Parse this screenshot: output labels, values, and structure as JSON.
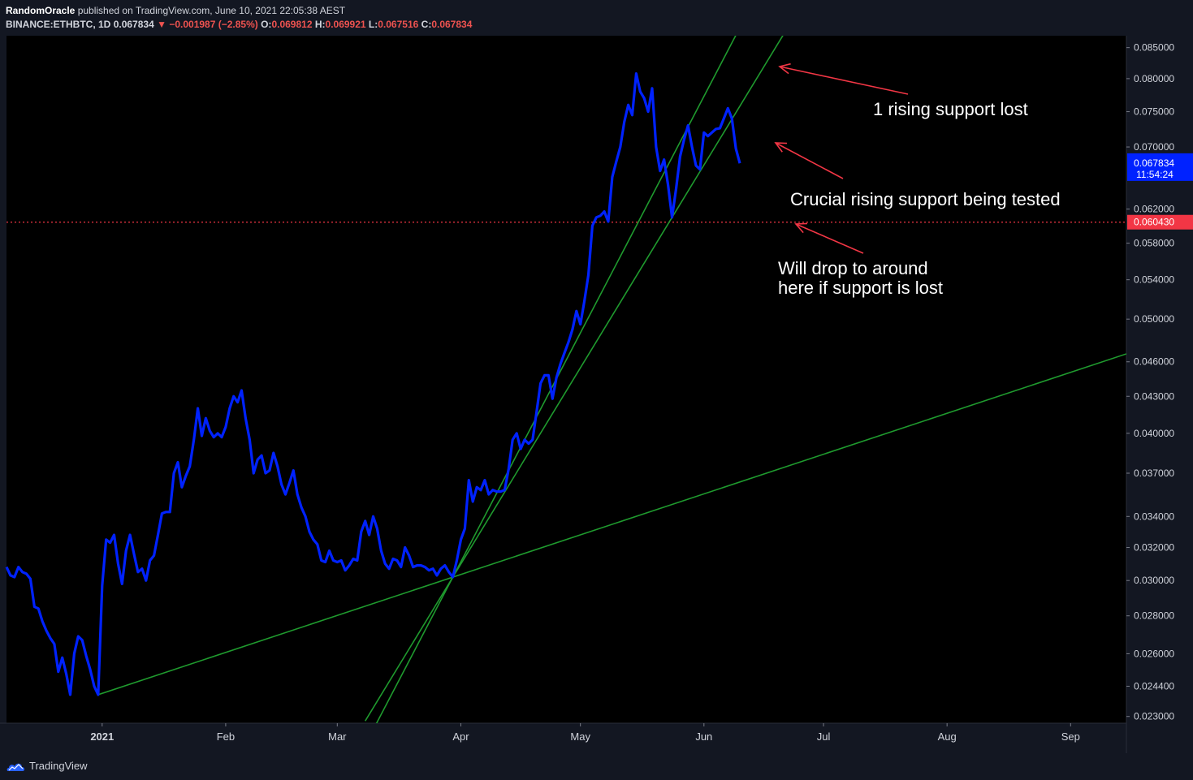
{
  "header": {
    "author": "RandomOracle",
    "published_text": "published on TradingView.com, June 10, 2021 22:05:38 AEST",
    "symbol": "BINANCE:ETHBTC, 1D",
    "last": "0.067834",
    "change": "−0.001987 (−2.85%)",
    "o_label": "O:",
    "o_value": "0.069812",
    "h_label": "H:",
    "h_value": "0.069921",
    "l_label": "L:",
    "l_value": "0.067516",
    "c_label": "C:",
    "c_value": "0.067834"
  },
  "footer": {
    "brand": "TradingView"
  },
  "annotations": {
    "a1": "1 rising support lost",
    "a2": "Crucial rising support being tested",
    "a3_line1": "Will drop to around",
    "a3_line2": "here if support is lost"
  },
  "colors": {
    "price_line": "#0022ff",
    "trend_line": "#1f9a2e",
    "arrow": "#f23645",
    "dotted_line": "#f23645",
    "background": "#131722"
  },
  "chart_data": {
    "type": "line",
    "y_scale": "log",
    "ylim": [
      0.0227,
      0.087
    ],
    "x_range": [
      "2020-12-08",
      "2021-09-15"
    ],
    "x_ticks": [
      {
        "date": "2021-01-01",
        "label": "2021",
        "bold": true
      },
      {
        "date": "2021-02-01",
        "label": "Feb"
      },
      {
        "date": "2021-03-01",
        "label": "Mar"
      },
      {
        "date": "2021-04-01",
        "label": "Apr"
      },
      {
        "date": "2021-05-01",
        "label": "May"
      },
      {
        "date": "2021-06-01",
        "label": "Jun"
      },
      {
        "date": "2021-07-01",
        "label": "Jul"
      },
      {
        "date": "2021-08-01",
        "label": "Aug"
      },
      {
        "date": "2021-09-01",
        "label": "Sep"
      }
    ],
    "y_ticks": [
      "0.085000",
      "0.080000",
      "0.075000",
      "0.070000",
      "0.062000",
      "0.058000",
      "0.054000",
      "0.050000",
      "0.046000",
      "0.043000",
      "0.040000",
      "0.037000",
      "0.034000",
      "0.032000",
      "0.030000",
      "0.028000",
      "0.026000",
      "0.024400",
      "0.023000"
    ],
    "y_tick_values": [
      0.085,
      0.08,
      0.075,
      0.07,
      0.062,
      0.058,
      0.054,
      0.05,
      0.046,
      0.043,
      0.04,
      0.037,
      0.034,
      0.032,
      0.03,
      0.028,
      0.026,
      0.0244,
      0.023
    ],
    "price_badge": {
      "value": 0.067834,
      "label": "0.067834",
      "sublabel": "11:54:24"
    },
    "level_badge": {
      "value": 0.06043,
      "label": "0.060430"
    },
    "series": [
      {
        "values": [
          [
            "2020-12-08",
            0.0308
          ],
          [
            "2020-12-09",
            0.0303
          ],
          [
            "2020-12-10",
            0.0302
          ],
          [
            "2020-12-11",
            0.0308
          ],
          [
            "2020-12-12",
            0.0305
          ],
          [
            "2020-12-13",
            0.0304
          ],
          [
            "2020-12-14",
            0.0301
          ],
          [
            "2020-12-15",
            0.0285
          ],
          [
            "2020-12-16",
            0.0284
          ],
          [
            "2020-12-17",
            0.0277
          ],
          [
            "2020-12-18",
            0.0272
          ],
          [
            "2020-12-19",
            0.0268
          ],
          [
            "2020-12-20",
            0.0265
          ],
          [
            "2020-12-21",
            0.0251
          ],
          [
            "2020-12-22",
            0.0258
          ],
          [
            "2020-12-23",
            0.025
          ],
          [
            "2020-12-24",
            0.024
          ],
          [
            "2020-12-25",
            0.026
          ],
          [
            "2020-12-26",
            0.0269
          ],
          [
            "2020-12-27",
            0.0267
          ],
          [
            "2020-12-28",
            0.0259
          ],
          [
            "2020-12-29",
            0.0252
          ],
          [
            "2020-12-30",
            0.0244
          ],
          [
            "2020-12-31",
            0.024
          ],
          [
            "2021-01-01",
            0.0297
          ],
          [
            "2021-01-02",
            0.0325
          ],
          [
            "2021-01-03",
            0.0323
          ],
          [
            "2021-01-04",
            0.0328
          ],
          [
            "2021-01-05",
            0.031
          ],
          [
            "2021-01-06",
            0.0298
          ],
          [
            "2021-01-07",
            0.0318
          ],
          [
            "2021-01-08",
            0.0328
          ],
          [
            "2021-01-09",
            0.0316
          ],
          [
            "2021-01-10",
            0.0305
          ],
          [
            "2021-01-11",
            0.0307
          ],
          [
            "2021-01-12",
            0.03
          ],
          [
            "2021-01-13",
            0.0312
          ],
          [
            "2021-01-14",
            0.0315
          ],
          [
            "2021-01-15",
            0.0328
          ],
          [
            "2021-01-16",
            0.0342
          ],
          [
            "2021-01-17",
            0.0343
          ],
          [
            "2021-01-18",
            0.0343
          ],
          [
            "2021-01-19",
            0.037
          ],
          [
            "2021-01-20",
            0.0378
          ],
          [
            "2021-01-21",
            0.036
          ],
          [
            "2021-01-22",
            0.0368
          ],
          [
            "2021-01-23",
            0.0375
          ],
          [
            "2021-01-24",
            0.0395
          ],
          [
            "2021-01-25",
            0.042
          ],
          [
            "2021-01-26",
            0.0398
          ],
          [
            "2021-01-27",
            0.0412
          ],
          [
            "2021-01-28",
            0.0402
          ],
          [
            "2021-01-29",
            0.0397
          ],
          [
            "2021-01-30",
            0.04
          ],
          [
            "2021-01-31",
            0.0397
          ],
          [
            "2021-02-01",
            0.0405
          ],
          [
            "2021-02-02",
            0.042
          ],
          [
            "2021-02-03",
            0.043
          ],
          [
            "2021-02-04",
            0.0425
          ],
          [
            "2021-02-05",
            0.0435
          ],
          [
            "2021-02-06",
            0.0412
          ],
          [
            "2021-02-07",
            0.0395
          ],
          [
            "2021-02-08",
            0.037
          ],
          [
            "2021-02-09",
            0.038
          ],
          [
            "2021-02-10",
            0.0383
          ],
          [
            "2021-02-11",
            0.037
          ],
          [
            "2021-02-12",
            0.0372
          ],
          [
            "2021-02-13",
            0.0385
          ],
          [
            "2021-02-14",
            0.0375
          ],
          [
            "2021-02-15",
            0.0362
          ],
          [
            "2021-02-16",
            0.0355
          ],
          [
            "2021-02-17",
            0.0363
          ],
          [
            "2021-02-18",
            0.0372
          ],
          [
            "2021-02-19",
            0.0355
          ],
          [
            "2021-02-20",
            0.0346
          ],
          [
            "2021-02-21",
            0.034
          ],
          [
            "2021-02-22",
            0.033
          ],
          [
            "2021-02-23",
            0.0325
          ],
          [
            "2021-02-24",
            0.0322
          ],
          [
            "2021-02-25",
            0.0312
          ],
          [
            "2021-02-26",
            0.0311
          ],
          [
            "2021-02-27",
            0.0318
          ],
          [
            "2021-02-28",
            0.0312
          ],
          [
            "2021-03-01",
            0.0311
          ],
          [
            "2021-03-02",
            0.0312
          ],
          [
            "2021-03-03",
            0.0306
          ],
          [
            "2021-03-04",
            0.0309
          ],
          [
            "2021-03-05",
            0.0313
          ],
          [
            "2021-03-06",
            0.0312
          ],
          [
            "2021-03-07",
            0.033
          ],
          [
            "2021-03-08",
            0.0337
          ],
          [
            "2021-03-09",
            0.0328
          ],
          [
            "2021-03-10",
            0.034
          ],
          [
            "2021-03-11",
            0.0332
          ],
          [
            "2021-03-12",
            0.0318
          ],
          [
            "2021-03-13",
            0.031
          ],
          [
            "2021-03-14",
            0.0307
          ],
          [
            "2021-03-15",
            0.0313
          ],
          [
            "2021-03-16",
            0.0312
          ],
          [
            "2021-03-17",
            0.0308
          ],
          [
            "2021-03-18",
            0.032
          ],
          [
            "2021-03-19",
            0.0315
          ],
          [
            "2021-03-20",
            0.0308
          ],
          [
            "2021-03-21",
            0.0309
          ],
          [
            "2021-03-22",
            0.0309
          ],
          [
            "2021-03-23",
            0.0308
          ],
          [
            "2021-03-24",
            0.0306
          ],
          [
            "2021-03-25",
            0.0307
          ],
          [
            "2021-03-26",
            0.0303
          ],
          [
            "2021-03-27",
            0.0307
          ],
          [
            "2021-03-28",
            0.0309
          ],
          [
            "2021-03-29",
            0.0305
          ],
          [
            "2021-03-30",
            0.0302
          ],
          [
            "2021-03-31",
            0.0312
          ],
          [
            "2021-04-01",
            0.0325
          ],
          [
            "2021-04-02",
            0.0332
          ],
          [
            "2021-04-03",
            0.0365
          ],
          [
            "2021-04-04",
            0.035
          ],
          [
            "2021-04-05",
            0.036
          ],
          [
            "2021-04-06",
            0.0358
          ],
          [
            "2021-04-07",
            0.0365
          ],
          [
            "2021-04-08",
            0.0355
          ],
          [
            "2021-04-09",
            0.0358
          ],
          [
            "2021-04-10",
            0.0357
          ],
          [
            "2021-04-11",
            0.0357
          ],
          [
            "2021-04-12",
            0.0358
          ],
          [
            "2021-04-13",
            0.0373
          ],
          [
            "2021-04-14",
            0.0395
          ],
          [
            "2021-04-15",
            0.04
          ],
          [
            "2021-04-16",
            0.0388
          ],
          [
            "2021-04-17",
            0.0395
          ],
          [
            "2021-04-18",
            0.0392
          ],
          [
            "2021-04-19",
            0.0395
          ],
          [
            "2021-04-20",
            0.0417
          ],
          [
            "2021-04-21",
            0.0441
          ],
          [
            "2021-04-22",
            0.0448
          ],
          [
            "2021-04-23",
            0.0448
          ],
          [
            "2021-04-24",
            0.0428
          ],
          [
            "2021-04-25",
            0.0446
          ],
          [
            "2021-04-26",
            0.0458
          ],
          [
            "2021-04-27",
            0.0468
          ],
          [
            "2021-04-28",
            0.0478
          ],
          [
            "2021-04-29",
            0.049
          ],
          [
            "2021-04-30",
            0.0508
          ],
          [
            "2021-05-01",
            0.0495
          ],
          [
            "2021-05-02",
            0.0518
          ],
          [
            "2021-05-03",
            0.0545
          ],
          [
            "2021-05-04",
            0.06
          ],
          [
            "2021-05-05",
            0.061
          ],
          [
            "2021-05-06",
            0.0612
          ],
          [
            "2021-05-07",
            0.0617
          ],
          [
            "2021-05-08",
            0.0605
          ],
          [
            "2021-05-09",
            0.066
          ],
          [
            "2021-05-10",
            0.068
          ],
          [
            "2021-05-11",
            0.07
          ],
          [
            "2021-05-12",
            0.0735
          ],
          [
            "2021-05-13",
            0.076
          ],
          [
            "2021-05-14",
            0.0745
          ],
          [
            "2021-05-15",
            0.0808
          ],
          [
            "2021-05-16",
            0.078
          ],
          [
            "2021-05-17",
            0.077
          ],
          [
            "2021-05-18",
            0.075
          ],
          [
            "2021-05-19",
            0.0785
          ],
          [
            "2021-05-20",
            0.07
          ],
          [
            "2021-05-21",
            0.0668
          ],
          [
            "2021-05-22",
            0.0683
          ],
          [
            "2021-05-23",
            0.065
          ],
          [
            "2021-05-24",
            0.061
          ],
          [
            "2021-05-25",
            0.0645
          ],
          [
            "2021-05-26",
            0.0687
          ],
          [
            "2021-05-27",
            0.071
          ],
          [
            "2021-05-28",
            0.073
          ],
          [
            "2021-05-29",
            0.07
          ],
          [
            "2021-05-30",
            0.0675
          ],
          [
            "2021-05-31",
            0.067
          ],
          [
            "2021-06-01",
            0.072
          ],
          [
            "2021-06-02",
            0.0715
          ],
          [
            "2021-06-03",
            0.072
          ],
          [
            "2021-06-04",
            0.0725
          ],
          [
            "2021-06-05",
            0.0726
          ],
          [
            "2021-06-06",
            0.074
          ],
          [
            "2021-06-07",
            0.0755
          ],
          [
            "2021-06-08",
            0.074
          ],
          [
            "2021-06-09",
            0.0698
          ],
          [
            "2021-06-10",
            0.0678
          ]
        ]
      }
    ]
  }
}
